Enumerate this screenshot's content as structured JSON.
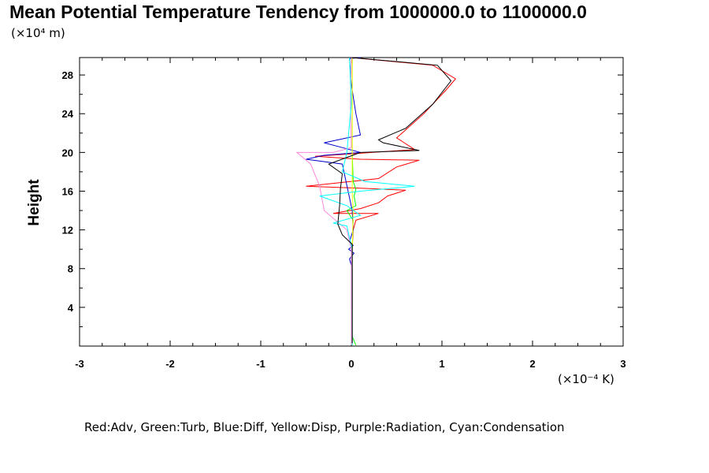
{
  "chart_data": {
    "type": "line",
    "title": "Mean Potential Temperature Tendency from 1000000.0 to 1100000.0",
    "ylabel": "Height",
    "y_unit": "(×10⁴ m)",
    "x_unit": "(×10⁻⁴ K)",
    "legend": "Red:Adv, Green:Turb, Blue:Diff, Yellow:Disp, Purple:Radiation, Cyan:Condensation",
    "xlim": [
      -3,
      3
    ],
    "ylim": [
      0,
      29.8
    ],
    "x_ticks": [
      "-3",
      "-2",
      "-1",
      "0",
      "1",
      "2",
      "3"
    ],
    "y_ticks": [
      "4",
      "8",
      "12",
      "16",
      "20",
      "24",
      "28"
    ],
    "grid": false,
    "series": [
      {
        "name": "Adv",
        "color": "#ff0000",
        "points": [
          [
            0,
            0.3
          ],
          [
            0.01,
            4
          ],
          [
            0.01,
            10
          ],
          [
            0.02,
            12
          ],
          [
            0.05,
            13
          ],
          [
            0.3,
            13.7
          ],
          [
            -0.2,
            13.7
          ],
          [
            0.1,
            14.2
          ],
          [
            0.3,
            14.8
          ],
          [
            0.4,
            15.5
          ],
          [
            0.6,
            16.1
          ],
          [
            0.1,
            16.3
          ],
          [
            -0.5,
            16.5
          ],
          [
            0.3,
            17.3
          ],
          [
            0.5,
            18.5
          ],
          [
            0.75,
            19.2
          ],
          [
            0.1,
            19.3
          ],
          [
            -0.4,
            19.6
          ],
          [
            0.7,
            20.3
          ],
          [
            0.5,
            21.5
          ],
          [
            0.8,
            24
          ],
          [
            1.05,
            26.5
          ],
          [
            1.15,
            27.6
          ],
          [
            0.9,
            29
          ],
          [
            0,
            29.8
          ]
        ]
      },
      {
        "name": "Turb",
        "color": "#00ff00",
        "points": [
          [
            0.05,
            0.1
          ],
          [
            0.01,
            1
          ],
          [
            0.01,
            10
          ],
          [
            0.02,
            13
          ],
          [
            -0.05,
            14
          ],
          [
            0.05,
            14.5
          ],
          [
            0.03,
            15.5
          ],
          [
            0.05,
            16.2
          ],
          [
            0.02,
            17
          ],
          [
            0.01,
            20
          ],
          [
            0.01,
            29.8
          ]
        ]
      },
      {
        "name": "Diff",
        "color": "#0000cc",
        "points": [
          [
            0.01,
            0.1
          ],
          [
            0.01,
            8
          ],
          [
            -0.02,
            9
          ],
          [
            0.03,
            9.6
          ],
          [
            -0.03,
            10
          ],
          [
            0.02,
            10.4
          ],
          [
            -0.02,
            10.8
          ],
          [
            0.02,
            12
          ],
          [
            0.01,
            14
          ],
          [
            -0.1,
            18.8
          ],
          [
            -0.5,
            19.3
          ],
          [
            -0.3,
            19.7
          ],
          [
            0.1,
            20
          ],
          [
            -0.1,
            20.5
          ],
          [
            -0.3,
            21
          ],
          [
            0.1,
            21.8
          ],
          [
            0.05,
            24
          ],
          [
            0,
            27
          ],
          [
            -0.02,
            29.7
          ],
          [
            0.1,
            29.8
          ]
        ]
      },
      {
        "name": "Disp",
        "color": "#ffff00",
        "points": [
          [
            0.01,
            0.1
          ],
          [
            0.01,
            10
          ],
          [
            0.02,
            14
          ],
          [
            0.01,
            16
          ],
          [
            0.01,
            20
          ],
          [
            0.01,
            29.8
          ]
        ]
      },
      {
        "name": "Radiation",
        "color": "#ff88dd",
        "points": [
          [
            0,
            0.1
          ],
          [
            0,
            10
          ],
          [
            -0.05,
            12
          ],
          [
            -0.3,
            14
          ],
          [
            -0.35,
            16.5
          ],
          [
            -0.45,
            18.8
          ],
          [
            -0.6,
            20
          ],
          [
            -0.2,
            20
          ],
          [
            0,
            20.5
          ],
          [
            -0.01,
            25
          ],
          [
            0,
            29.8
          ]
        ]
      },
      {
        "name": "Condensation",
        "color": "#00ffff",
        "points": [
          [
            0.01,
            0.1
          ],
          [
            0.01,
            10
          ],
          [
            -0.05,
            12.4
          ],
          [
            -0.2,
            12.7
          ],
          [
            0.1,
            13.5
          ],
          [
            -0.05,
            14.5
          ],
          [
            -0.35,
            15.5
          ],
          [
            0.1,
            16
          ],
          [
            0.7,
            16.5
          ],
          [
            0.15,
            17
          ],
          [
            -0.1,
            18
          ],
          [
            -0.05,
            20
          ],
          [
            0,
            25
          ],
          [
            -0.02,
            29.8
          ]
        ]
      },
      {
        "name": "",
        "color": "#000000",
        "points": [
          [
            0.01,
            0.3
          ],
          [
            0.01,
            10.5
          ],
          [
            -0.1,
            11.5
          ],
          [
            -0.15,
            12.6
          ],
          [
            -0.13,
            14.5
          ],
          [
            -0.12,
            16.3
          ],
          [
            -0.1,
            17.8
          ],
          [
            -0.25,
            18.8
          ],
          [
            0.1,
            20
          ],
          [
            0.75,
            20.2
          ],
          [
            0.35,
            21
          ],
          [
            0.3,
            21.3
          ],
          [
            0.6,
            22.5
          ],
          [
            0.9,
            25
          ],
          [
            1.1,
            27.4
          ],
          [
            0.95,
            29
          ],
          [
            0,
            29.8
          ]
        ]
      }
    ]
  }
}
